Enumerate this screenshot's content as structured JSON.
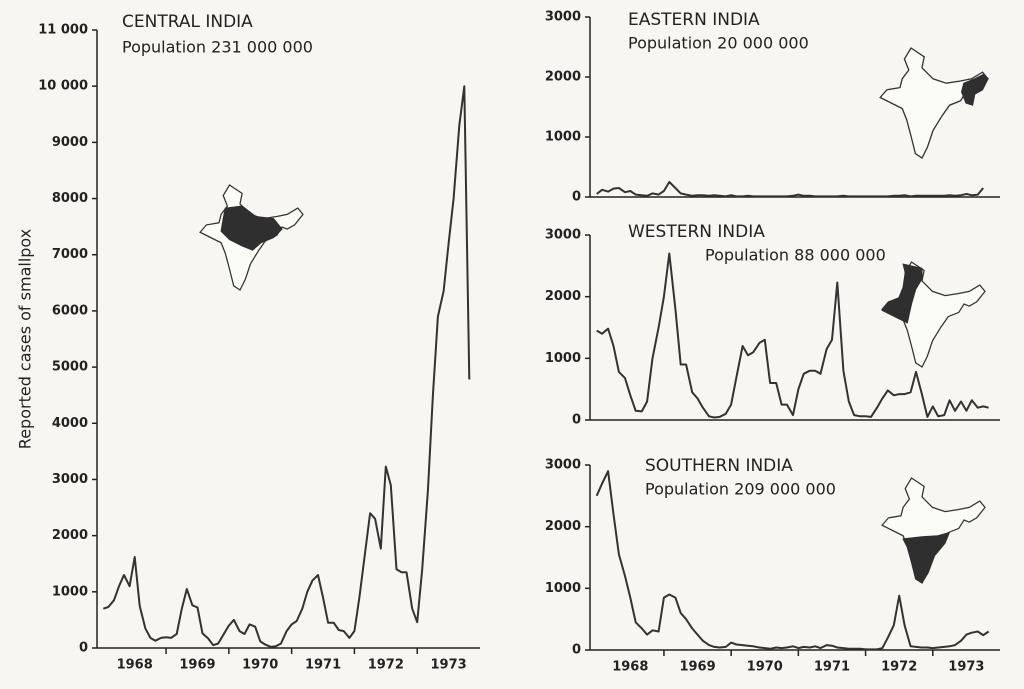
{
  "chart_data": [
    {
      "type": "line",
      "title": "CENTRAL INDIA",
      "subtitle": "Population 231 000 000",
      "ylabel": "Reported cases of smallpox",
      "xlim": [
        1967.9,
        1974.0
      ],
      "xticks": [
        1968,
        1969,
        1970,
        1971,
        1972,
        1973
      ],
      "ylim": [
        0,
        11000
      ],
      "yticks": [
        0,
        1000,
        2000,
        3000,
        4000,
        5000,
        6000,
        7000,
        8000,
        9000,
        {
          "value": 10000,
          "label": "10 000"
        },
        {
          "value": 11000,
          "label": "11 000"
        }
      ],
      "series": [
        {
          "color": "#333333",
          "x": [
            1968,
            1968.08,
            1968.17,
            1968.25,
            1968.33,
            1968.42,
            1968.5,
            1968.58,
            1968.67,
            1968.75,
            1968.83,
            1968.92,
            1969,
            1969.08,
            1969.17,
            1969.25,
            1969.33,
            1969.42,
            1969.5,
            1969.58,
            1969.67,
            1969.75,
            1969.83,
            1969.92,
            1970,
            1970.08,
            1970.17,
            1970.25,
            1970.33,
            1970.42,
            1970.5,
            1970.58,
            1970.67,
            1970.75,
            1970.83,
            1970.92,
            1971,
            1971.08,
            1971.17,
            1971.25,
            1971.33,
            1971.42,
            1971.5,
            1971.58,
            1971.67,
            1971.75,
            1971.83,
            1971.92,
            1972,
            1972.08,
            1972.17,
            1972.25,
            1972.33,
            1972.42,
            1972.5,
            1972.58,
            1972.67,
            1972.75,
            1972.83,
            1972.92,
            1973,
            1973.08,
            1973.17,
            1973.25,
            1973.33,
            1973.42,
            1973.5,
            1973.58,
            1973.67,
            1973.75,
            1973.83
          ],
          "values": [
            700,
            730,
            850,
            1100,
            1300,
            1100,
            1620,
            750,
            350,
            180,
            130,
            180,
            190,
            180,
            250,
            700,
            1050,
            760,
            720,
            260,
            170,
            50,
            80,
            250,
            400,
            500,
            300,
            250,
            420,
            380,
            120,
            60,
            20,
            30,
            80,
            300,
            420,
            480,
            700,
            1000,
            1200,
            1300,
            900,
            450,
            450,
            320,
            300,
            180,
            300,
            900,
            1700,
            2400,
            2300,
            1770,
            3230,
            2900,
            1400,
            1350,
            1350,
            700,
            460,
            1400,
            2800,
            4500,
            5900,
            6350,
            7200,
            8000,
            9300,
            10000,
            4780
          ]
        }
      ]
    },
    {
      "type": "line",
      "title": "EASTERN INDIA",
      "subtitle": "Population 20 000 000",
      "xlim": [
        1967.9,
        1974.0
      ],
      "ylim": [
        0,
        3000
      ],
      "yticks": [
        0,
        1000,
        2000,
        3000
      ],
      "series": [
        {
          "color": "#333333",
          "x": [
            1968,
            1968.08,
            1968.17,
            1968.25,
            1968.33,
            1968.42,
            1968.5,
            1968.58,
            1968.67,
            1968.75,
            1968.83,
            1968.92,
            1969,
            1969.08,
            1969.17,
            1969.25,
            1969.33,
            1969.42,
            1969.5,
            1969.58,
            1969.67,
            1969.75,
            1969.83,
            1969.92,
            1970,
            1970.08,
            1970.17,
            1970.25,
            1970.33,
            1970.42,
            1970.5,
            1970.58,
            1970.67,
            1970.75,
            1970.83,
            1970.92,
            1971,
            1971.08,
            1971.17,
            1971.25,
            1971.33,
            1971.42,
            1971.5,
            1971.58,
            1971.67,
            1971.75,
            1971.83,
            1971.92,
            1972,
            1972.08,
            1972.17,
            1972.25,
            1972.33,
            1972.42,
            1972.5,
            1972.58,
            1972.67,
            1972.75,
            1972.83,
            1972.92,
            1973,
            1973.08,
            1973.17,
            1973.25,
            1973.33,
            1973.42,
            1973.5,
            1973.58,
            1973.67,
            1973.75
          ],
          "values": [
            50,
            120,
            90,
            140,
            150,
            80,
            100,
            40,
            30,
            20,
            60,
            40,
            100,
            250,
            150,
            60,
            40,
            20,
            30,
            30,
            20,
            30,
            20,
            10,
            30,
            10,
            10,
            20,
            10,
            10,
            10,
            10,
            10,
            10,
            10,
            20,
            40,
            20,
            20,
            10,
            10,
            10,
            10,
            10,
            20,
            10,
            10,
            10,
            10,
            10,
            10,
            10,
            10,
            20,
            20,
            30,
            10,
            20,
            20,
            20,
            20,
            20,
            20,
            30,
            20,
            30,
            50,
            30,
            40,
            150
          ]
        }
      ]
    },
    {
      "type": "line",
      "title": "WESTERN INDIA",
      "subtitle": "Population 88 000 000",
      "xlim": [
        1967.9,
        1974.0
      ],
      "ylim": [
        0,
        3000
      ],
      "yticks": [
        0,
        1000,
        2000,
        3000
      ],
      "series": [
        {
          "color": "#333333",
          "x": [
            1968,
            1968.08,
            1968.17,
            1968.25,
            1968.33,
            1968.42,
            1968.5,
            1968.58,
            1968.67,
            1968.75,
            1968.83,
            1968.92,
            1969,
            1969.08,
            1969.17,
            1969.25,
            1969.33,
            1969.42,
            1969.5,
            1969.58,
            1969.67,
            1969.75,
            1969.83,
            1969.92,
            1970,
            1970.08,
            1970.17,
            1970.25,
            1970.33,
            1970.42,
            1970.5,
            1970.58,
            1970.67,
            1970.75,
            1970.83,
            1970.92,
            1971,
            1971.08,
            1971.17,
            1971.25,
            1971.33,
            1971.42,
            1971.5,
            1971.58,
            1971.67,
            1971.75,
            1971.83,
            1971.92,
            1972,
            1972.08,
            1972.17,
            1972.25,
            1972.33,
            1972.42,
            1972.5,
            1972.58,
            1972.67,
            1972.75,
            1972.83,
            1972.92,
            1973,
            1973.08,
            1973.17,
            1973.25,
            1973.33,
            1973.42,
            1973.5,
            1973.58,
            1973.67,
            1973.75,
            1973.83
          ],
          "values": [
            1450,
            1400,
            1480,
            1200,
            780,
            680,
            400,
            150,
            140,
            300,
            1000,
            1500,
            2000,
            2700,
            1800,
            900,
            900,
            450,
            350,
            200,
            60,
            40,
            50,
            100,
            250,
            700,
            1200,
            1050,
            1100,
            1250,
            1300,
            600,
            600,
            250,
            250,
            80,
            500,
            750,
            800,
            800,
            750,
            1150,
            1300,
            2230,
            800,
            300,
            80,
            60,
            60,
            50,
            200,
            350,
            480,
            400,
            420,
            420,
            450,
            780,
            450,
            50,
            220,
            60,
            80,
            320,
            150,
            300,
            150,
            320,
            200,
            220,
            200
          ]
        }
      ]
    },
    {
      "type": "line",
      "title": "SOUTHERN INDIA",
      "subtitle": "Population 209 000 000",
      "xlim": [
        1967.9,
        1974.0
      ],
      "xticks": [
        1968,
        1969,
        1970,
        1971,
        1972,
        1973
      ],
      "ylim": [
        0,
        3000
      ],
      "yticks": [
        0,
        1000,
        2000,
        3000
      ],
      "series": [
        {
          "color": "#333333",
          "x": [
            1968,
            1968.08,
            1968.17,
            1968.25,
            1968.33,
            1968.42,
            1968.5,
            1968.58,
            1968.67,
            1968.75,
            1968.83,
            1968.92,
            1969,
            1969.08,
            1969.17,
            1969.25,
            1969.33,
            1969.42,
            1969.5,
            1969.58,
            1969.67,
            1969.75,
            1969.83,
            1969.92,
            1970,
            1970.08,
            1970.17,
            1970.25,
            1970.33,
            1970.42,
            1970.5,
            1970.58,
            1970.67,
            1970.75,
            1970.83,
            1970.92,
            1971,
            1971.08,
            1971.17,
            1971.25,
            1971.33,
            1971.42,
            1971.5,
            1971.58,
            1971.67,
            1971.75,
            1971.83,
            1971.92,
            1972,
            1972.08,
            1972.17,
            1972.25,
            1972.33,
            1972.42,
            1972.5,
            1972.58,
            1972.67,
            1972.75,
            1972.83,
            1972.92,
            1973,
            1973.08,
            1973.17,
            1973.25,
            1973.33,
            1973.42,
            1973.5,
            1973.58,
            1973.67,
            1973.75,
            1973.83
          ],
          "values": [
            2500,
            2700,
            2900,
            2200,
            1550,
            1200,
            850,
            450,
            350,
            250,
            320,
            300,
            850,
            900,
            850,
            600,
            500,
            350,
            250,
            150,
            80,
            50,
            40,
            50,
            120,
            90,
            80,
            70,
            60,
            40,
            30,
            20,
            40,
            30,
            40,
            60,
            30,
            50,
            40,
            60,
            30,
            80,
            70,
            40,
            30,
            20,
            20,
            20,
            10,
            10,
            10,
            30,
            200,
            400,
            880,
            400,
            60,
            50,
            40,
            40,
            30,
            40,
            50,
            60,
            80,
            150,
            250,
            280,
            300,
            240,
            300
          ]
        }
      ]
    }
  ]
}
